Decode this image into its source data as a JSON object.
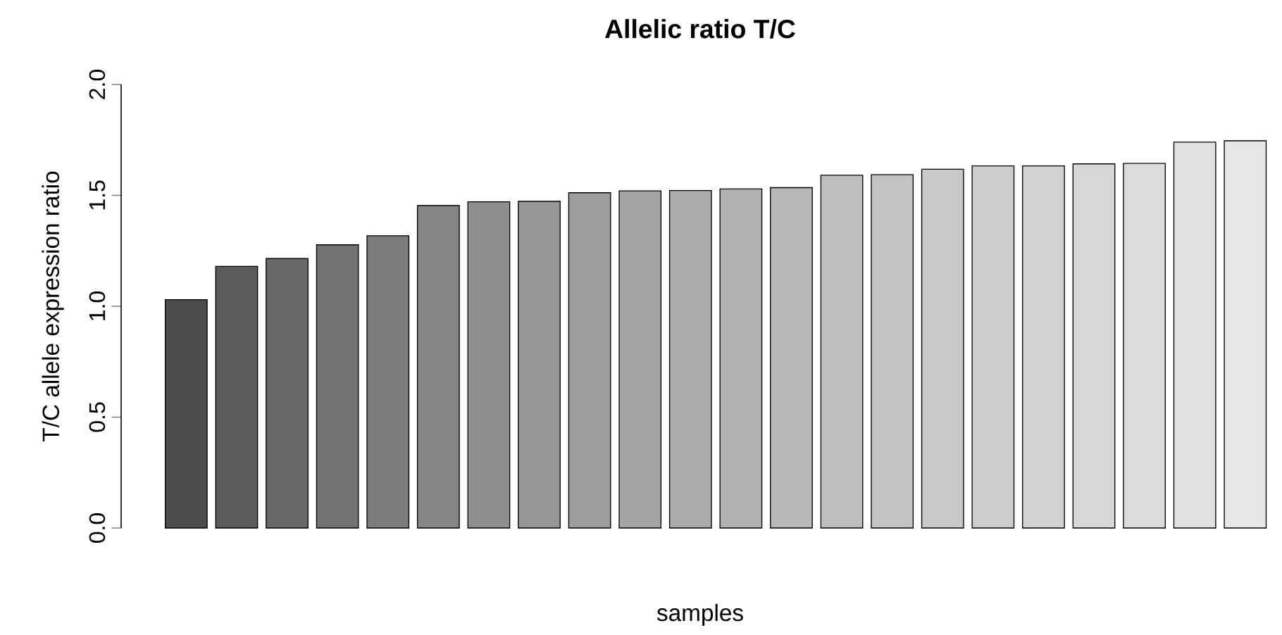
{
  "chart_data": {
    "type": "bar",
    "title": "Allelic ratio T/C",
    "xlabel": "samples",
    "ylabel": "T/C allele expression ratio",
    "categories": [
      null,
      null,
      null,
      null,
      null,
      null,
      null,
      null,
      null,
      null,
      null,
      null,
      null,
      null,
      null,
      null,
      null,
      null,
      null,
      null,
      null,
      null
    ],
    "values": [
      1.03,
      1.18,
      1.215,
      1.277,
      1.318,
      1.454,
      1.471,
      1.473,
      1.512,
      1.52,
      1.522,
      1.529,
      1.535,
      1.591,
      1.593,
      1.618,
      1.633,
      1.633,
      1.642,
      1.644,
      1.74,
      1.746
    ],
    "colors": [
      "#4d4d4d",
      "#5c5c5c",
      "#686868",
      "#737373",
      "#7d7d7d",
      "#868686",
      "#8e8e8e",
      "#969696",
      "#9d9d9d",
      "#a4a4a4",
      "#ababab",
      "#b1b1b1",
      "#b7b7b7",
      "#bdbdbd",
      "#c3c3c3",
      "#c8c8c8",
      "#cdcdcd",
      "#d2d2d2",
      "#d7d7d7",
      "#dcdcdc",
      "#e1e1e1",
      "#e6e6e6"
    ],
    "ylim": [
      0,
      2
    ],
    "yticks": [
      {
        "value": 0,
        "label": "0.0"
      },
      {
        "value": 0.5,
        "label": "0.5"
      },
      {
        "value": 1,
        "label": "1.0"
      },
      {
        "value": 1.5,
        "label": "1.5"
      },
      {
        "value": 2,
        "label": "2.0"
      }
    ],
    "tick_labels": "y"
  }
}
